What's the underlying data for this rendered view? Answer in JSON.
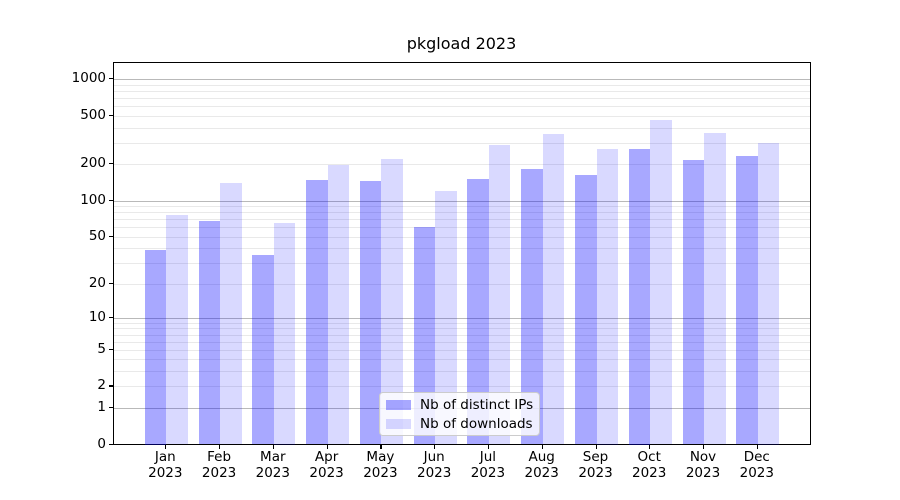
{
  "chart_data": {
    "type": "bar",
    "title": "pkgload 2023",
    "yscale": "log1p",
    "grid": "on",
    "legend_position": "lower center",
    "yticks": [
      0,
      1,
      2,
      5,
      10,
      20,
      50,
      100,
      200,
      500,
      1000
    ],
    "ylim": [
      0,
      1350
    ],
    "categories": [
      {
        "month": "Jan",
        "year": "2023"
      },
      {
        "month": "Feb",
        "year": "2023"
      },
      {
        "month": "Mar",
        "year": "2023"
      },
      {
        "month": "Apr",
        "year": "2023"
      },
      {
        "month": "May",
        "year": "2023"
      },
      {
        "month": "Jun",
        "year": "2023"
      },
      {
        "month": "Jul",
        "year": "2023"
      },
      {
        "month": "Aug",
        "year": "2023"
      },
      {
        "month": "Sep",
        "year": "2023"
      },
      {
        "month": "Oct",
        "year": "2023"
      },
      {
        "month": "Nov",
        "year": "2023"
      },
      {
        "month": "Dec",
        "year": "2023"
      }
    ],
    "series": [
      {
        "name": "Nb of distinct IPs",
        "base_color": "#0000ff",
        "alpha": 0.34,
        "values": [
          39,
          68,
          35,
          147,
          146,
          60,
          150,
          181,
          163,
          267,
          217,
          234
        ]
      },
      {
        "name": "Nb of downloads",
        "base_color": "#0000ff",
        "alpha": 0.15,
        "values": [
          76,
          140,
          65,
          196,
          222,
          119,
          289,
          357,
          267,
          462,
          362,
          299
        ]
      }
    ],
    "colors": {
      "bar_distinct_ips_apparent": "#aaaaff",
      "bar_downloads_apparent": "#d9d9ff",
      "grid_major": "#b9b9b9",
      "grid_minor": "#e9e9e9",
      "axis": "#000000"
    }
  }
}
